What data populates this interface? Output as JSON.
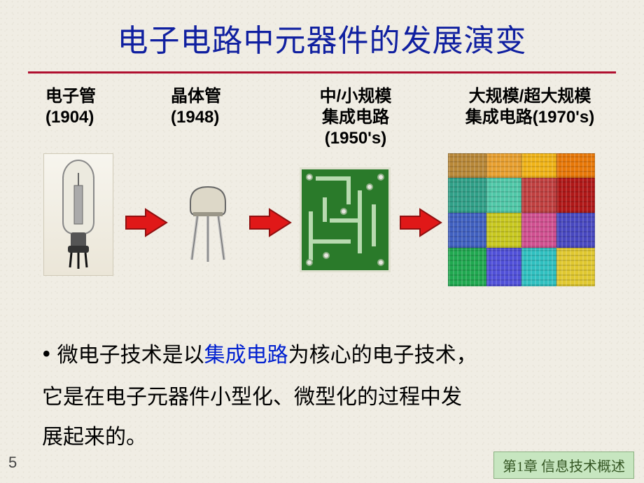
{
  "title": "电子电路中元器件的发展演变",
  "timeline": {
    "items": [
      {
        "name": "电子管",
        "year": "(1904)"
      },
      {
        "name": "晶体管",
        "year": "(1948)"
      },
      {
        "name_l1": "中/小规模",
        "name_l2": "集成电路",
        "year": "(1950's)"
      },
      {
        "name_l1": "大规模/超大规模",
        "name_l2": "集成电路(1970's)"
      }
    ]
  },
  "description": {
    "pre": "微电子技术是以",
    "key": "集成电路",
    "post1": "为核心的电子技术，",
    "line2": "它是在电子元器件小型化、微型化的过程中发",
    "line3": "展起来的。"
  },
  "page_number": "5",
  "footer": "第1章 信息技术概述",
  "colors": {
    "title": "#1020a0",
    "underline": "#b01030",
    "key_term": "#0020d0",
    "arrow_fill": "#e01818",
    "arrow_border": "#901010",
    "pcb_green": "#2a7a2a",
    "footer_bg": "#c7e6c0"
  },
  "die_colors": [
    "#b88838",
    "#e8a030",
    "#f0b418",
    "#e87808",
    "#30a088",
    "#50c8a8",
    "#c04040",
    "#b01818",
    "#4060c0",
    "#c8c820",
    "#d05090",
    "#4848c0",
    "#20a850",
    "#5050d8",
    "#30c0c0",
    "#e0c830"
  ]
}
